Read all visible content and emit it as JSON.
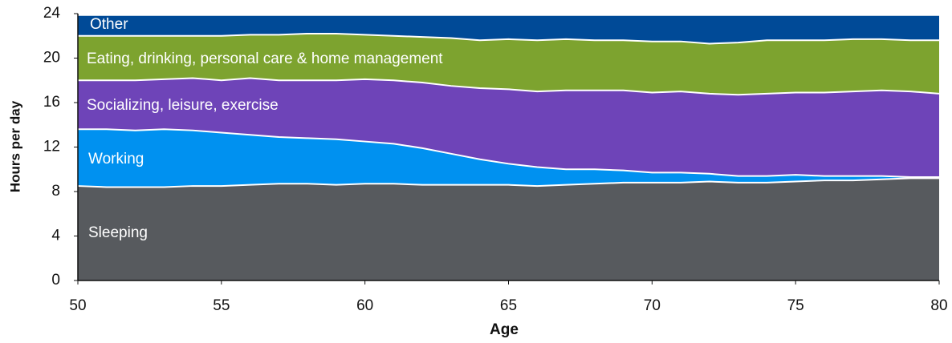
{
  "chart_data": {
    "type": "stacked_area",
    "x_label": "Age",
    "y_label": "Hours per day",
    "x": [
      50,
      51,
      52,
      53,
      54,
      55,
      56,
      57,
      58,
      59,
      60,
      61,
      62,
      63,
      64,
      65,
      66,
      67,
      68,
      69,
      70,
      71,
      72,
      73,
      74,
      75,
      76,
      77,
      78,
      79,
      80
    ],
    "xlim": [
      50,
      80
    ],
    "xticks": [
      50,
      55,
      60,
      65,
      70,
      75,
      80
    ],
    "ylim": [
      0,
      24
    ],
    "yticks": [
      0,
      4,
      8,
      12,
      16,
      20,
      24
    ],
    "series": [
      {
        "name": "Sleeping",
        "color": "#575a5e",
        "values": [
          8.5,
          8.4,
          8.4,
          8.4,
          8.5,
          8.5,
          8.6,
          8.7,
          8.7,
          8.6,
          8.7,
          8.7,
          8.6,
          8.6,
          8.6,
          8.6,
          8.5,
          8.6,
          8.7,
          8.8,
          8.8,
          8.8,
          8.9,
          8.8,
          8.8,
          8.9,
          9.0,
          9.0,
          9.1,
          9.2,
          9.2
        ]
      },
      {
        "name": "Working",
        "color": "#0091f0",
        "values": [
          5.1,
          5.2,
          5.1,
          5.2,
          5.0,
          4.8,
          4.5,
          4.2,
          4.1,
          4.1,
          3.8,
          3.6,
          3.3,
          2.8,
          2.3,
          1.9,
          1.7,
          1.4,
          1.3,
          1.1,
          0.9,
          0.9,
          0.7,
          0.6,
          0.6,
          0.6,
          0.4,
          0.4,
          0.3,
          0.1,
          0.1
        ]
      },
      {
        "name": "Socializing, leisure, exercise",
        "color": "#6e44b8",
        "values": [
          4.4,
          4.4,
          4.5,
          4.5,
          4.7,
          4.7,
          5.1,
          5.1,
          5.2,
          5.3,
          5.6,
          5.7,
          5.9,
          6.1,
          6.4,
          6.7,
          6.8,
          7.1,
          7.1,
          7.2,
          7.2,
          7.3,
          7.2,
          7.3,
          7.4,
          7.4,
          7.5,
          7.6,
          7.7,
          7.7,
          7.5
        ]
      },
      {
        "name": "Eating, drinking, personal care & home management",
        "color": "#7da32f",
        "values": [
          4.0,
          4.0,
          4.0,
          3.9,
          3.8,
          4.0,
          3.9,
          4.1,
          4.2,
          4.2,
          4.0,
          4.0,
          4.1,
          4.3,
          4.3,
          4.5,
          4.6,
          4.6,
          4.5,
          4.5,
          4.6,
          4.5,
          4.5,
          4.7,
          4.8,
          4.7,
          4.7,
          4.7,
          4.6,
          4.6,
          4.8
        ]
      },
      {
        "name": "Other",
        "color": "#004a97",
        "values": [
          1.8,
          1.8,
          1.8,
          1.8,
          1.8,
          1.8,
          1.7,
          1.7,
          1.6,
          1.6,
          1.7,
          1.8,
          1.9,
          2.0,
          2.2,
          2.1,
          2.2,
          2.1,
          2.2,
          2.2,
          2.3,
          2.3,
          2.5,
          2.4,
          2.2,
          2.2,
          2.2,
          2.1,
          2.1,
          2.2,
          2.2
        ]
      }
    ]
  }
}
